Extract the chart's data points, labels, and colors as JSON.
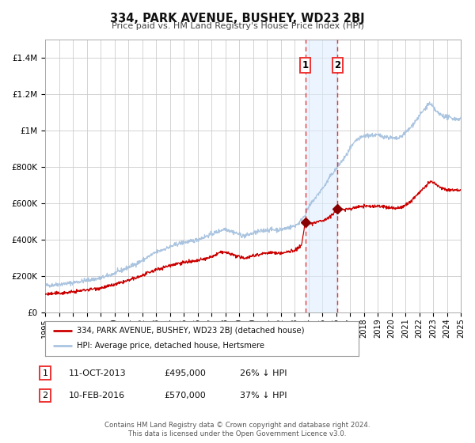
{
  "title": "334, PARK AVENUE, BUSHEY, WD23 2BJ",
  "subtitle": "Price paid vs. HM Land Registry's House Price Index (HPI)",
  "ylim": [
    0,
    1500000
  ],
  "xlim_start": 1995.0,
  "xlim_end": 2025.0,
  "yticks": [
    0,
    200000,
    400000,
    600000,
    800000,
    1000000,
    1200000,
    1400000
  ],
  "ytick_labels": [
    "£0",
    "£200K",
    "£400K",
    "£600K",
    "£800K",
    "£1M",
    "£1.2M",
    "£1.4M"
  ],
  "xticks": [
    1995,
    1996,
    1997,
    1998,
    1999,
    2000,
    2001,
    2002,
    2003,
    2004,
    2005,
    2006,
    2007,
    2008,
    2009,
    2010,
    2011,
    2012,
    2013,
    2014,
    2015,
    2016,
    2017,
    2018,
    2019,
    2020,
    2021,
    2022,
    2023,
    2024,
    2025
  ],
  "hpi_color": "#aac4e0",
  "price_color": "#cc0000",
  "marker_color": "#880000",
  "vline_color": "#ee3333",
  "shade_color": "#ddeeff",
  "point1_x": 2013.78,
  "point1_y": 495000,
  "point2_x": 2016.11,
  "point2_y": 570000,
  "legend_line1": "334, PARK AVENUE, BUSHEY, WD23 2BJ (detached house)",
  "legend_line2": "HPI: Average price, detached house, Hertsmere",
  "table_row1_num": "1",
  "table_row1_date": "11-OCT-2013",
  "table_row1_price": "£495,000",
  "table_row1_hpi": "26% ↓ HPI",
  "table_row2_num": "2",
  "table_row2_date": "10-FEB-2016",
  "table_row2_price": "£570,000",
  "table_row2_hpi": "37% ↓ HPI",
  "footer_line1": "Contains HM Land Registry data © Crown copyright and database right 2024.",
  "footer_line2": "This data is licensed under the Open Government Licence v3.0.",
  "background_color": "#ffffff"
}
